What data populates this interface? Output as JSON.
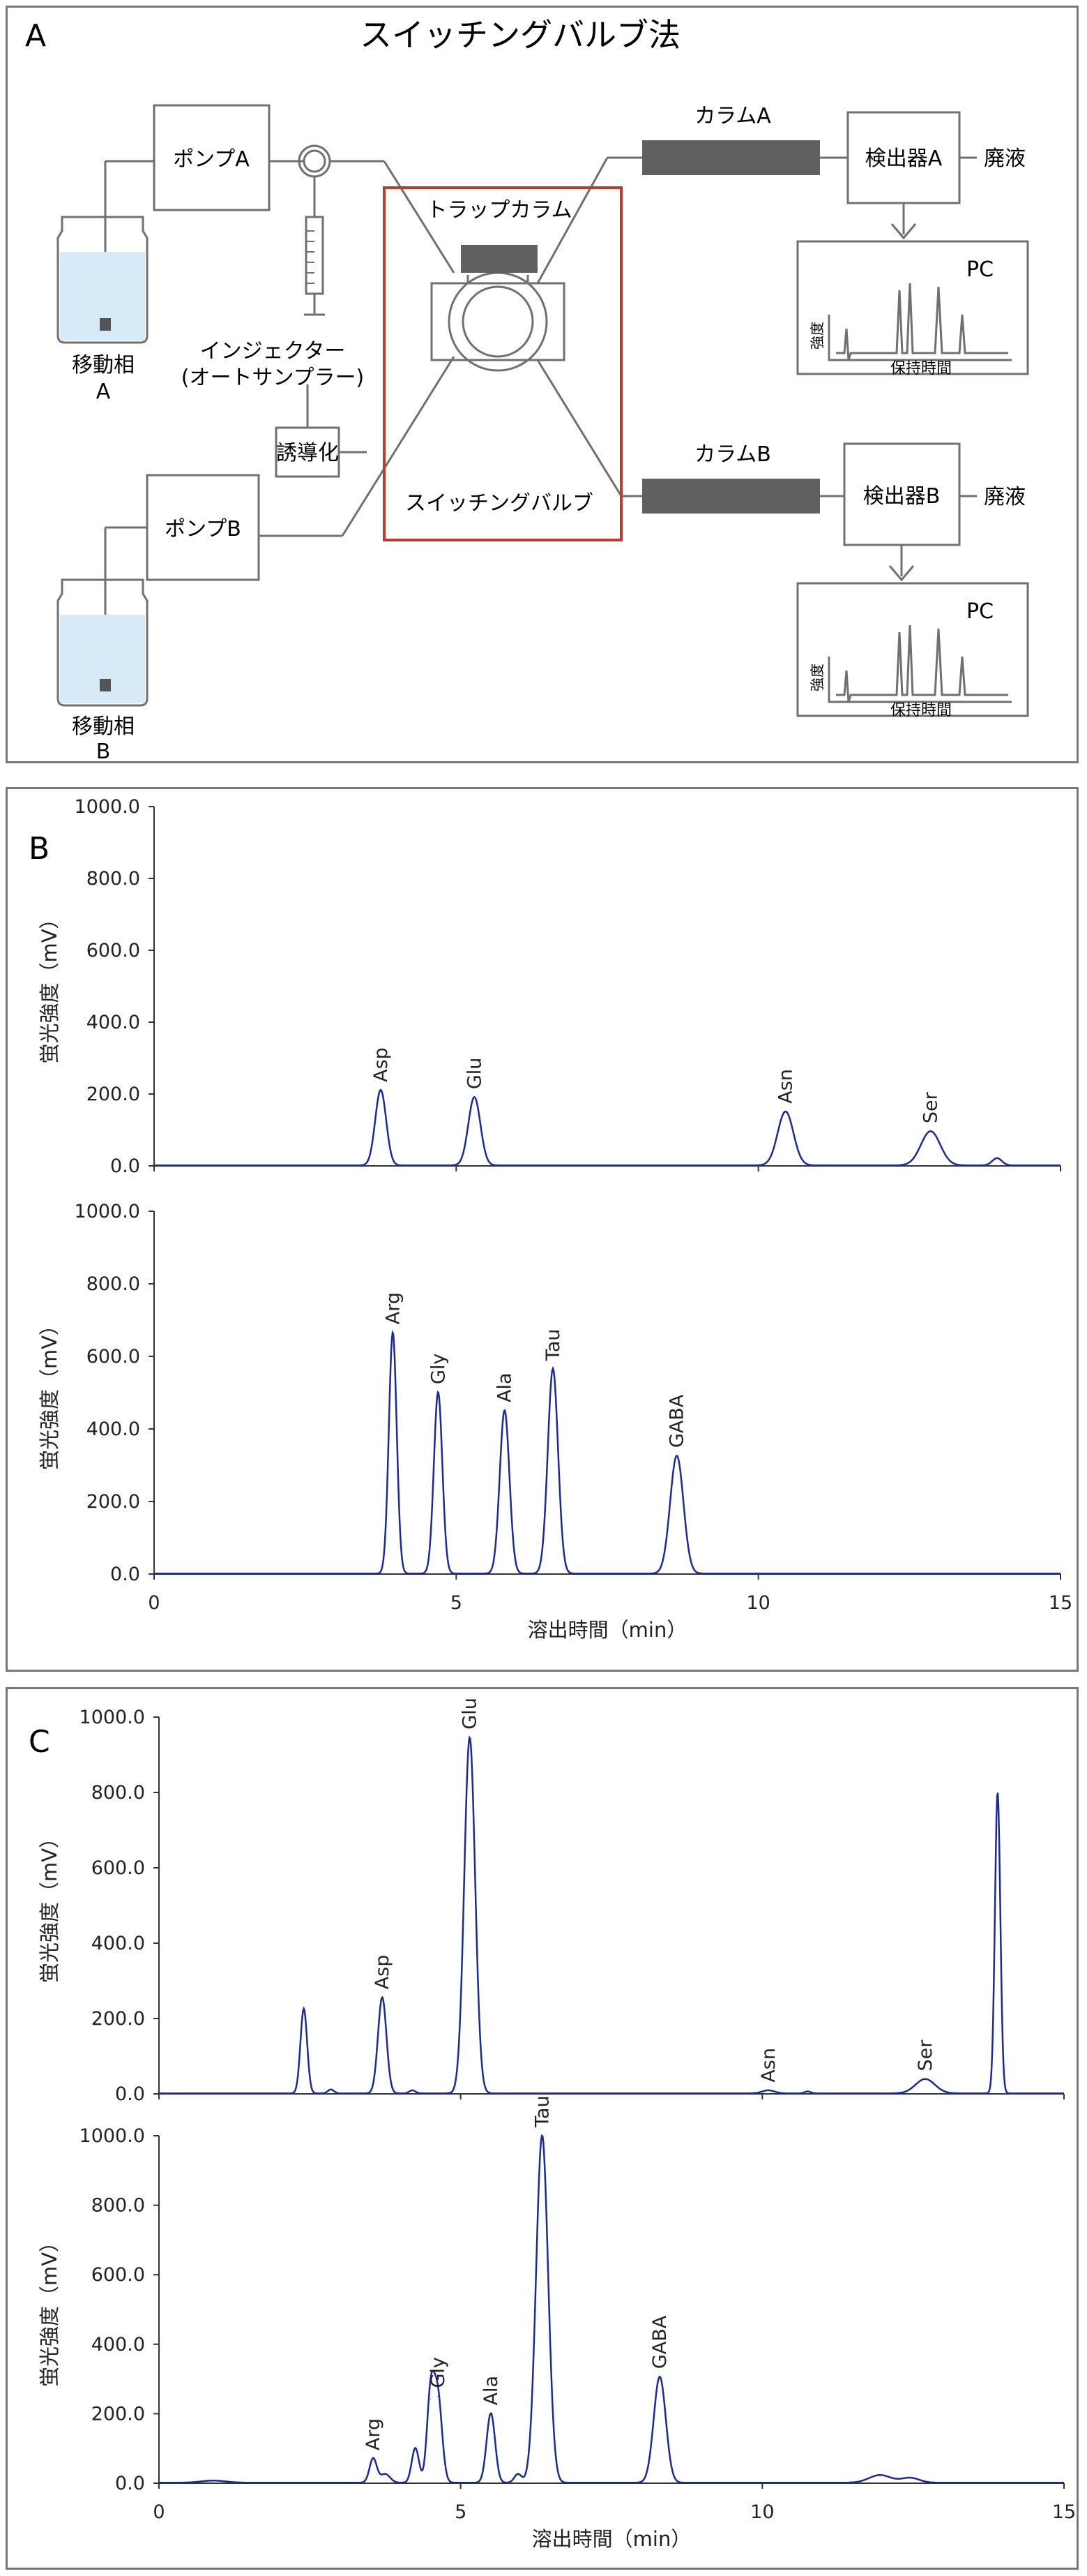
{
  "panel_a": {
    "letter": "A",
    "title": "スイッチングバルブ法",
    "labels": {
      "pump_a": "ポンプA",
      "pump_b": "ポンプB",
      "mobile_phase_a_1": "移動相",
      "mobile_phase_a_2": "A",
      "mobile_phase_b_1": "移動相",
      "mobile_phase_b_2": "B",
      "injector_1": "インジェクター",
      "injector_2": "(オートサンプラー)",
      "derivatization": "誘導化",
      "trap_column": "トラップカラム",
      "switching_valve": "スイッチングバルブ",
      "column_a": "カラムA",
      "column_b": "カラムB",
      "detector_a": "検出器A",
      "detector_b": "検出器B",
      "waste_a": "廃液",
      "waste_b": "廃液",
      "pc_a": "PC",
      "pc_b": "PC",
      "pc_ylabel_a": "強度",
      "pc_ylabel_b": "強度",
      "pc_xlabel_a": "保持時間",
      "pc_xlabel_b": "保持時間"
    },
    "colors": {
      "line": "#707070",
      "highlight": "#c0392b",
      "liquid": "#d6eaf8",
      "column_fill": "#606060"
    }
  },
  "panel_b": {
    "letter": "B"
  },
  "panel_c": {
    "letter": "C"
  },
  "axis_common": {
    "ylabel": "蛍光強度（mV）",
    "xlabel": "溶出時間（min）",
    "y_ticks": [
      "0.0",
      "200.0",
      "400.0",
      "600.0",
      "800.0",
      "1000.0"
    ],
    "x_ticks": [
      "0",
      "5",
      "10",
      "15"
    ]
  },
  "chart_data": [
    {
      "panel": "B",
      "subplot": "top",
      "type": "line",
      "xlim": [
        0,
        15
      ],
      "ylim": [
        0,
        1000
      ],
      "color": "#1a2a9c",
      "peaks": [
        {
          "label": "Asp",
          "x": 3.75,
          "y": 210,
          "w": 0.09
        },
        {
          "label": "Glu",
          "x": 5.3,
          "y": 190,
          "w": 0.1
        },
        {
          "label": "Asn",
          "x": 10.45,
          "y": 150,
          "w": 0.13
        },
        {
          "label": "Ser",
          "x": 12.85,
          "y": 95,
          "w": 0.16
        },
        {
          "label": "",
          "x": 13.95,
          "y": 20,
          "w": 0.08
        }
      ]
    },
    {
      "panel": "B",
      "subplot": "bottom",
      "type": "line",
      "xlim": [
        0,
        15
      ],
      "ylim": [
        0,
        1000
      ],
      "color": "#1a2a9c",
      "peaks": [
        {
          "label": "Arg",
          "x": 3.95,
          "y": 665,
          "w": 0.065
        },
        {
          "label": "Gly",
          "x": 4.7,
          "y": 500,
          "w": 0.07
        },
        {
          "label": "Ala",
          "x": 5.8,
          "y": 450,
          "w": 0.08
        },
        {
          "label": "Tau",
          "x": 6.6,
          "y": 565,
          "w": 0.085
        },
        {
          "label": "GABA",
          "x": 8.65,
          "y": 325,
          "w": 0.11
        }
      ]
    },
    {
      "panel": "C",
      "subplot": "top",
      "type": "line",
      "xlim": [
        0,
        15
      ],
      "ylim": [
        0,
        1000
      ],
      "color": "#1a2a9c",
      "peaks": [
        {
          "label": "",
          "x": 2.4,
          "y": 225,
          "w": 0.055
        },
        {
          "label": "",
          "x": 2.85,
          "y": 10,
          "w": 0.05
        },
        {
          "label": "Asp",
          "x": 3.7,
          "y": 255,
          "w": 0.07
        },
        {
          "label": "",
          "x": 4.2,
          "y": 8,
          "w": 0.05
        },
        {
          "label": "Glu",
          "x": 5.15,
          "y": 945,
          "w": 0.09
        },
        {
          "label": "Asn",
          "x": 10.1,
          "y": 8,
          "w": 0.1
        },
        {
          "label": "",
          "x": 10.75,
          "y": 5,
          "w": 0.05
        },
        {
          "label": "Ser",
          "x": 12.7,
          "y": 38,
          "w": 0.16
        },
        {
          "label": "",
          "x": 13.9,
          "y": 800,
          "w": 0.045
        }
      ]
    },
    {
      "panel": "C",
      "subplot": "bottom",
      "type": "line",
      "xlim": [
        0,
        15
      ],
      "ylim": [
        0,
        1000
      ],
      "color": "#1a2a9c",
      "peaks": [
        {
          "label": "",
          "x": 0.9,
          "y": 6,
          "w": 0.2
        },
        {
          "label": "Arg",
          "x": 3.55,
          "y": 70,
          "w": 0.06
        },
        {
          "label": "",
          "x": 3.75,
          "y": 25,
          "w": 0.08
        },
        {
          "label": "",
          "x": 4.25,
          "y": 100,
          "w": 0.06
        },
        {
          "label": "",
          "x": 4.5,
          "y": 240,
          "w": 0.06
        },
        {
          "label": "Gly",
          "x": 4.62,
          "y": 250,
          "w": 0.07
        },
        {
          "label": "Ala",
          "x": 5.5,
          "y": 200,
          "w": 0.07
        },
        {
          "label": "",
          "x": 5.95,
          "y": 25,
          "w": 0.06
        },
        {
          "label": "Tau",
          "x": 6.35,
          "y": 1000,
          "w": 0.1
        },
        {
          "label": "GABA",
          "x": 8.3,
          "y": 305,
          "w": 0.1
        },
        {
          "label": "",
          "x": 11.95,
          "y": 22,
          "w": 0.18
        },
        {
          "label": "",
          "x": 12.45,
          "y": 14,
          "w": 0.15
        }
      ]
    }
  ]
}
